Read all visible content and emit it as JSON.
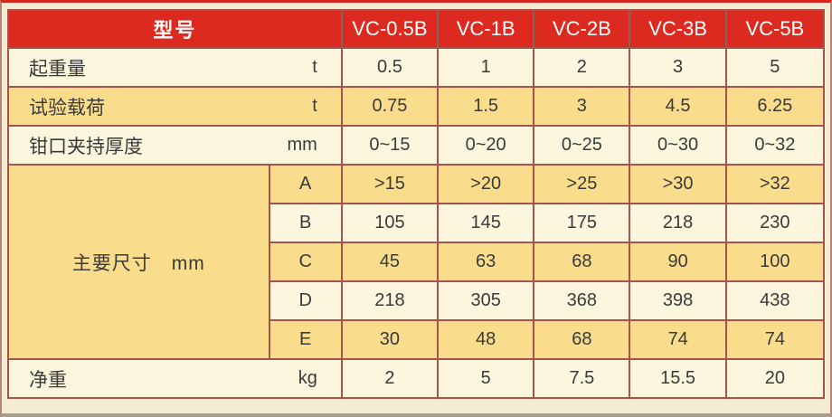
{
  "colors": {
    "header_red": "#dd2a20",
    "row_cream": "#fdf6de",
    "row_gold": "#f9dd8c",
    "grid_border": "#a6544a",
    "page_background": "#f4edd6",
    "header_text": "#ffffff",
    "body_text": "#3a3a3a"
  },
  "table": {
    "header": {
      "label": "型号",
      "models": [
        "VC-0.5B",
        "VC-1B",
        "VC-2B",
        "VC-3B",
        "VC-5B"
      ]
    },
    "rows": [
      {
        "label": "起重量",
        "unit": "t",
        "values": [
          "0.5",
          "1",
          "2",
          "3",
          "5"
        ]
      },
      {
        "label": "试验载荷",
        "unit": "t",
        "values": [
          "0.75",
          "1.5",
          "3",
          "4.5",
          "6.25"
        ]
      },
      {
        "label": "钳口夹持厚度",
        "unit": "mm",
        "values": [
          "0~15",
          "0~20",
          "0~25",
          "0~30",
          "0~32"
        ]
      }
    ],
    "dimensions": {
      "label": "主要尺寸　mm",
      "rows": [
        {
          "sub": "A",
          "values": [
            ">15",
            ">20",
            ">25",
            ">30",
            ">32"
          ]
        },
        {
          "sub": "B",
          "values": [
            "105",
            "145",
            "175",
            "218",
            "230"
          ]
        },
        {
          "sub": "C",
          "values": [
            "45",
            "63",
            "68",
            "90",
            "100"
          ]
        },
        {
          "sub": "D",
          "values": [
            "218",
            "305",
            "368",
            "398",
            "438"
          ]
        },
        {
          "sub": "E",
          "values": [
            "30",
            "48",
            "68",
            "74",
            "74"
          ]
        }
      ]
    },
    "weight": {
      "label": "净重",
      "unit": "kg",
      "values": [
        "2",
        "5",
        "7.5",
        "15.5",
        "20"
      ]
    }
  }
}
